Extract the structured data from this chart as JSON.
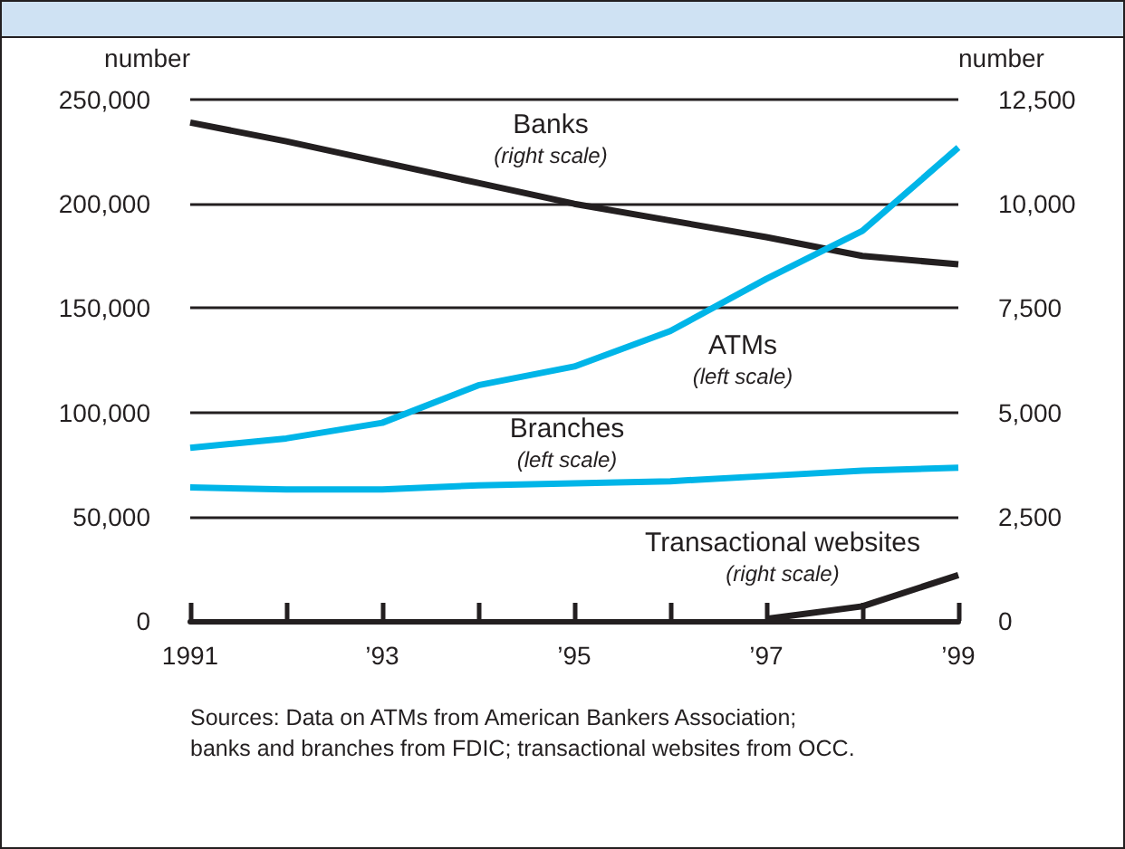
{
  "chart_data": {
    "type": "line",
    "ylabel": "number",
    "y2label": "number",
    "x": [
      1991,
      1992,
      1993,
      1994,
      1995,
      1996,
      1997,
      1998,
      1999
    ],
    "xlim": [
      1991,
      1999
    ],
    "xticks": [
      {
        "value": 1991,
        "label": "1991"
      },
      {
        "value": 1992,
        "label": null
      },
      {
        "value": 1993,
        "label": "’93"
      },
      {
        "value": 1994,
        "label": null
      },
      {
        "value": 1995,
        "label": "’95"
      },
      {
        "value": 1996,
        "label": null
      },
      {
        "value": 1997,
        "label": "’97"
      },
      {
        "value": 1998,
        "label": null
      },
      {
        "value": 1999,
        "label": "’99"
      }
    ],
    "ylim": [
      0,
      250000
    ],
    "yticks": [
      0,
      {
        "value": 50000,
        "label": "50,000"
      },
      {
        "value": 100000,
        "label": "100,000"
      },
      {
        "value": 150000,
        "label": "150,000"
      },
      {
        "value": 200000,
        "label": "200,000"
      },
      {
        "value": 250000,
        "label": "250,000"
      }
    ],
    "y2lim": [
      0,
      12500
    ],
    "y2ticks": [
      0,
      {
        "value": 2500,
        "label": "2,500"
      },
      {
        "value": 5000,
        "label": "5,000"
      },
      {
        "value": 7500,
        "label": "7,500"
      },
      {
        "value": 10000,
        "label": "10,000"
      },
      {
        "value": 12500,
        "label": "12,500"
      }
    ],
    "series": [
      {
        "name": "Banks",
        "color": "#231f20",
        "axis": "y2",
        "values": [
          11950,
          11500,
          11000,
          10500,
          10000,
          9600,
          9200,
          8750,
          8550
        ]
      },
      {
        "name": "ATMs",
        "color": "#00b5e8",
        "values": [
          83000,
          87500,
          95000,
          113000,
          122000,
          139000,
          164000,
          187000,
          227000
        ]
      },
      {
        "name": "Branches",
        "color": "#00b5e8",
        "values": [
          64000,
          63000,
          63000,
          65000,
          66000,
          67000,
          69500,
          72000,
          73500
        ]
      },
      {
        "name": "Transactional websites",
        "color": "#231f20",
        "axis": "y2",
        "values": [
          null,
          null,
          null,
          null,
          null,
          null,
          50,
          350,
          1100
        ]
      }
    ],
    "annotations": [
      "(right scale)",
      "(left scale)",
      "(left scale)",
      "(right scale)",
      "Sources: Data on ATMs from American Bankers Association;\nbanks and branches from FDIC; transactional websites from OCC."
    ],
    "grid": "y",
    "legend": false,
    "marker": "none",
    "line_style": "solid"
  }
}
